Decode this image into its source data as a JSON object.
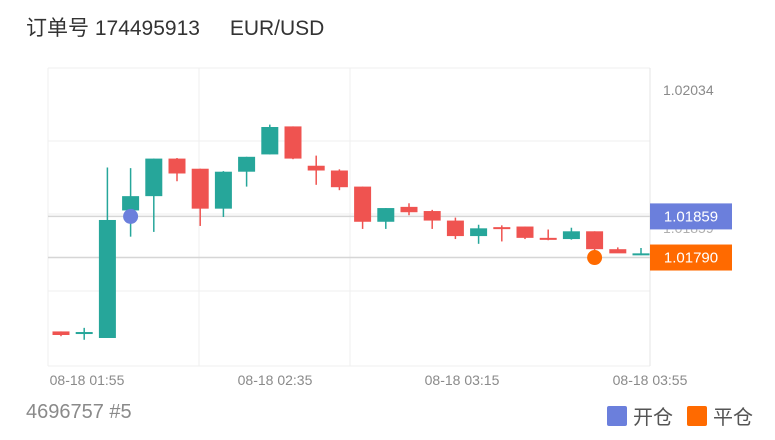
{
  "header": {
    "order_label": "订单号",
    "order_number": "174495913",
    "pair": "EUR/USD"
  },
  "footer": {
    "account": "4696757 #5"
  },
  "legend": [
    {
      "label": "开仓",
      "color": "#6b7fdc"
    },
    {
      "label": "平仓",
      "color": "#ff6a00"
    }
  ],
  "chart_data": {
    "type": "candlestick",
    "x_ticks": [
      "08-18 01:55",
      "08-18 02:35",
      "08-18 03:15",
      "08-18 03:55"
    ],
    "y_tick_labels": [
      "1.02034",
      "1.01859"
    ],
    "ylim": [
      1.01608,
      1.02108
    ],
    "open_price": 1.01859,
    "close_price": 1.0179,
    "colors": {
      "up": "#26a69a",
      "down": "#ef5350",
      "open": "#6b7fdc",
      "close": "#ff6a00"
    },
    "candles": [
      {
        "o": 1.01666,
        "h": 1.01666,
        "l": 1.01658,
        "c": 1.0166
      },
      {
        "o": 1.01665,
        "h": 1.01672,
        "l": 1.01652,
        "c": 1.01665
      },
      {
        "o": 1.01655,
        "h": 1.01941,
        "l": 1.01655,
        "c": 1.01853
      },
      {
        "o": 1.01869,
        "h": 1.0194,
        "l": 1.01825,
        "c": 1.01893
      },
      {
        "o": 1.01893,
        "h": 1.01956,
        "l": 1.01833,
        "c": 1.01956
      },
      {
        "o": 1.01956,
        "h": 1.01957,
        "l": 1.01918,
        "c": 1.01931
      },
      {
        "o": 1.01939,
        "h": 1.01939,
        "l": 1.01843,
        "c": 1.01872
      },
      {
        "o": 1.01872,
        "h": 1.01935,
        "l": 1.01858,
        "c": 1.01934
      },
      {
        "o": 1.01934,
        "h": 1.01959,
        "l": 1.01909,
        "c": 1.01959
      },
      {
        "o": 1.01963,
        "h": 1.02013,
        "l": 1.01963,
        "c": 1.02009
      },
      {
        "o": 1.0201,
        "h": 1.0201,
        "l": 1.01955,
        "c": 1.01956
      },
      {
        "o": 1.01944,
        "h": 1.01961,
        "l": 1.01912,
        "c": 1.01936
      },
      {
        "o": 1.01936,
        "h": 1.01938,
        "l": 1.01903,
        "c": 1.01908
      },
      {
        "o": 1.01909,
        "h": 1.01909,
        "l": 1.01838,
        "c": 1.0185
      },
      {
        "o": 1.0185,
        "h": 1.01873,
        "l": 1.01838,
        "c": 1.01873
      },
      {
        "o": 1.01875,
        "h": 1.01881,
        "l": 1.01861,
        "c": 1.01866
      },
      {
        "o": 1.01868,
        "h": 1.0187,
        "l": 1.01838,
        "c": 1.01852
      },
      {
        "o": 1.01852,
        "h": 1.01857,
        "l": 1.01821,
        "c": 1.01826
      },
      {
        "o": 1.01826,
        "h": 1.01845,
        "l": 1.01813,
        "c": 1.01839
      },
      {
        "o": 1.01841,
        "h": 1.01844,
        "l": 1.01817,
        "c": 1.01839
      },
      {
        "o": 1.01842,
        "h": 1.01842,
        "l": 1.01821,
        "c": 1.01823
      },
      {
        "o": 1.01823,
        "h": 1.01837,
        "l": 1.01819,
        "c": 1.01822
      },
      {
        "o": 1.01821,
        "h": 1.0184,
        "l": 1.0182,
        "c": 1.01834
      },
      {
        "o": 1.01834,
        "h": 1.01834,
        "l": 1.01784,
        "c": 1.01804
      },
      {
        "o": 1.01804,
        "h": 1.01807,
        "l": 1.01799,
        "c": 1.01797
      },
      {
        "o": 1.01797,
        "h": 1.01806,
        "l": 1.01794,
        "c": 1.01797
      }
    ]
  }
}
